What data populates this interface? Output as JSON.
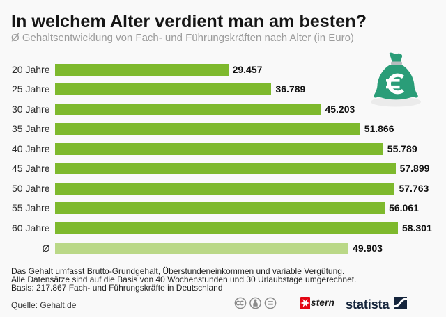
{
  "page": {
    "background": "#f9f9f9"
  },
  "header": {
    "title": "In welchem Alter verdient man am besten?",
    "subtitle": "Ø Gehaltsentwicklung von Fach- und Führungskräften nach Alter (in Euro)"
  },
  "chart_data": {
    "type": "bar",
    "orientation": "horizontal",
    "categories": [
      "20 Jahre",
      "25 Jahre",
      "30 Jahre",
      "35 Jahre",
      "40 Jahre",
      "45 Jahre",
      "50 Jahre",
      "55 Jahre",
      "60 Jahre",
      "Ø"
    ],
    "values": [
      29457,
      36789,
      45203,
      51866,
      55789,
      57899,
      57763,
      56061,
      58301,
      49903
    ],
    "value_labels": [
      "29.457",
      "36.789",
      "45.203",
      "51.866",
      "55.789",
      "57.899",
      "57.763",
      "56.061",
      "58.301",
      "49.903"
    ],
    "title": "In welchem Alter verdient man am besten?",
    "subtitle": "Ø Gehaltsentwicklung von Fach- und Führungskräften nach Alter (in Euro)",
    "xlabel": "",
    "ylabel": "",
    "xlim": [
      0,
      58301
    ],
    "grid": false,
    "legend": false,
    "bar_color": "#7eb92d",
    "average_bar_color": "#bad887",
    "average_category_index": 9
  },
  "icons": {
    "money_bag": {
      "name": "money-bag-euro-icon",
      "symbol": "€",
      "bag_color": "#2a9d78",
      "band_color": "#b9c0c1",
      "shadow_color": "#ebebeb"
    }
  },
  "footnotes": {
    "lines": [
      "Das Gehalt umfasst Brutto-Grundgehalt, Überstundeneinkommen und variable Vergütung.",
      "Alle Datensätze sind auf die Basis von 40 Wochenstunden und 30 Urlaubstage umgerechnet.",
      "Basis: 217.867 Fach- und Führungskräfte in Deutschland"
    ]
  },
  "footer": {
    "source": "Quelle: Gehalt.de",
    "license": {
      "cc_label": "cc",
      "icons": [
        "cc-icon",
        "cc-by-icon",
        "cc-nd-icon"
      ],
      "color": "#8a8a8a"
    },
    "brands": {
      "stern": "stern",
      "statista": "statista",
      "stern_red": "#e30613",
      "statista_navy": "#15253c"
    }
  }
}
